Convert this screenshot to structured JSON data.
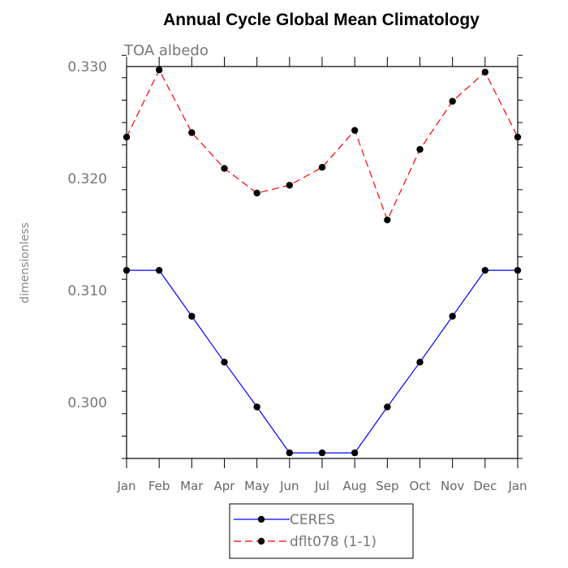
{
  "chart_data": {
    "type": "line",
    "title": "Annual Cycle Global Mean Climatology",
    "subtitle": "TOA  albedo",
    "xlabel": "",
    "ylabel": "dimensionless",
    "categories": [
      "Jan",
      "Feb",
      "Mar",
      "Apr",
      "May",
      "Jun",
      "Jul",
      "Aug",
      "Sep",
      "Oct",
      "Nov",
      "Dec",
      "Jan"
    ],
    "ylim": [
      0.295,
      0.33
    ],
    "yticks": [
      "0.300",
      "0.310",
      "0.320",
      "0.330"
    ],
    "grid": false,
    "legend_position": "bottom",
    "series": [
      {
        "name": "CERES",
        "color": "#0000ff",
        "dash": "solid",
        "marker": "filled-circle",
        "values": [
          0.3118,
          0.3118,
          0.3077,
          0.3036,
          0.2996,
          0.2955,
          0.2955,
          0.2955,
          0.2996,
          0.3036,
          0.3077,
          0.3118,
          0.3118
        ]
      },
      {
        "name": "dflt078 (1-1)",
        "color": "#ff0000",
        "dash": "dashed",
        "marker": "filled-circle",
        "values": [
          0.3237,
          0.3297,
          0.3241,
          0.3209,
          0.3187,
          0.3194,
          0.321,
          0.3243,
          0.3163,
          0.3226,
          0.3269,
          0.3295,
          0.3237
        ]
      }
    ]
  }
}
